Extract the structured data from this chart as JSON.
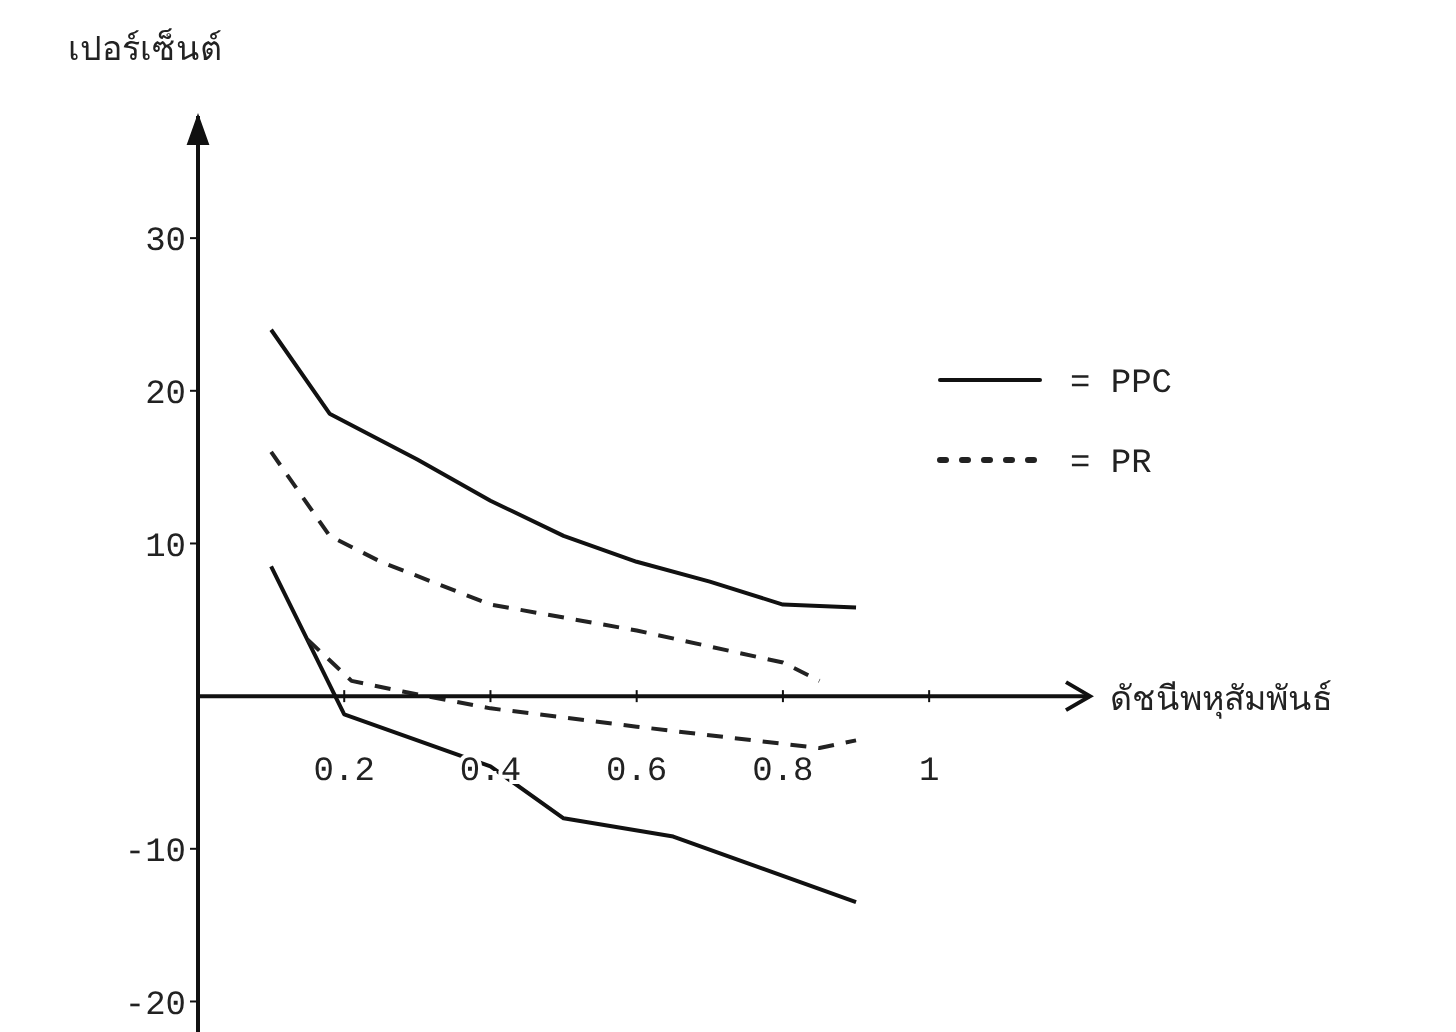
{
  "chart_data": {
    "type": "line",
    "xlabel": "ดัชนีพหุสัมพันธ์",
    "ylabel": "เปอร์เซ็นต์",
    "xlim": [
      0,
      1.22
    ],
    "ylim": [
      -22,
      38
    ],
    "xticks": [
      0.2,
      0.4,
      0.6,
      0.8,
      1
    ],
    "yticks": [
      -20,
      -10,
      10,
      20,
      30
    ],
    "legend": "top right",
    "grid": false,
    "marker": "none",
    "series": [
      {
        "name": "= PPC",
        "color": "#111111",
        "line_style": "solid",
        "x": [
          0.1,
          0.18,
          0.3,
          0.4,
          0.5,
          0.6,
          0.7,
          0.8,
          0.9
        ],
        "values": [
          24,
          18.5,
          15.5,
          12.8,
          10.5,
          8.8,
          7.5,
          6,
          5.8
        ]
      },
      {
        "color": "#111111",
        "line_style": "solid",
        "x": [
          0.1,
          0.2,
          0.4,
          0.5,
          0.65,
          0.9
        ],
        "values": [
          8.5,
          -1.2,
          -4.6,
          -8,
          -9.2,
          -13.5
        ]
      },
      {
        "name": "= PR",
        "color": "#222222",
        "line_style": "dashed",
        "x": [
          0.1,
          0.18,
          0.25,
          0.4,
          0.6,
          0.8,
          0.85
        ],
        "values": [
          16,
          10.5,
          8.8,
          6,
          4.3,
          2.2,
          1
        ]
      },
      {
        "color": "#222222",
        "line_style": "dashed",
        "x": [
          0.15,
          0.21,
          0.28,
          0.4,
          0.6,
          0.85,
          0.9
        ],
        "values": [
          3.7,
          1,
          0.3,
          -0.8,
          -2,
          -3.4,
          -2.9
        ]
      }
    ]
  }
}
